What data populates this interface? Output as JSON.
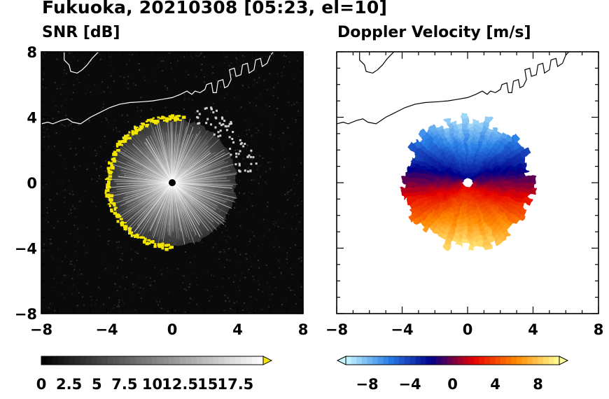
{
  "figure": {
    "title": "Fukuoka, 20210308 [05:23, el=10]"
  },
  "chart_data": [
    {
      "type": "heatmap",
      "title": "SNR [dB]",
      "xlim": [
        -8,
        8
      ],
      "ylim": [
        -8,
        8
      ],
      "xticks": [
        -8,
        -4,
        0,
        4,
        8
      ],
      "yticks": [
        -8,
        -4,
        0,
        4,
        8
      ],
      "xtick_labels": [
        "−8",
        "−4",
        "0",
        "4",
        "8"
      ],
      "ytick_labels": [
        "8",
        "4",
        "0",
        "−4",
        "−8"
      ],
      "background_color": "#0a0a0a",
      "radar_site": [
        0,
        0
      ],
      "echo_radius_approx": 3.9,
      "colorbar": {
        "min": 0,
        "max": 20,
        "colors": [
          "#000000",
          "#ffffff",
          "#f2e600"
        ],
        "extend": "max",
        "tick_values": [
          0,
          2.5,
          5,
          7.5,
          10,
          12.5,
          15,
          17.5
        ],
        "tick_labels": [
          "0",
          "2.5",
          "5",
          "7.5",
          "10",
          "12.5",
          "15",
          "17.5"
        ]
      }
    },
    {
      "type": "heatmap",
      "title": "Doppler Velocity [m/s]",
      "xlim": [
        -8,
        8
      ],
      "ylim": [
        -8,
        8
      ],
      "xticks": [
        -8,
        -4,
        0,
        4,
        8
      ],
      "yticks": [
        -8,
        -4,
        0,
        4,
        8
      ],
      "xtick_labels": [
        "−8",
        "−4",
        "0",
        "4",
        "8"
      ],
      "ytick_labels": [
        "8",
        "4",
        "0",
        "−4",
        "−8"
      ],
      "background_color": "#ffffff",
      "radar_site": [
        0,
        0
      ],
      "echo_radius_approx": 3.9,
      "colorbar": {
        "min": -10,
        "max": 10,
        "colors": [
          "#c8f6ff",
          "#2a7fe6",
          "#00008a",
          "#e60000",
          "#ff8a00",
          "#ffff99"
        ],
        "extend": "both",
        "tick_values": [
          -8,
          -4,
          0,
          4,
          8
        ],
        "tick_labels": [
          "−8",
          "−4",
          "0",
          "4",
          "8"
        ]
      }
    }
  ]
}
